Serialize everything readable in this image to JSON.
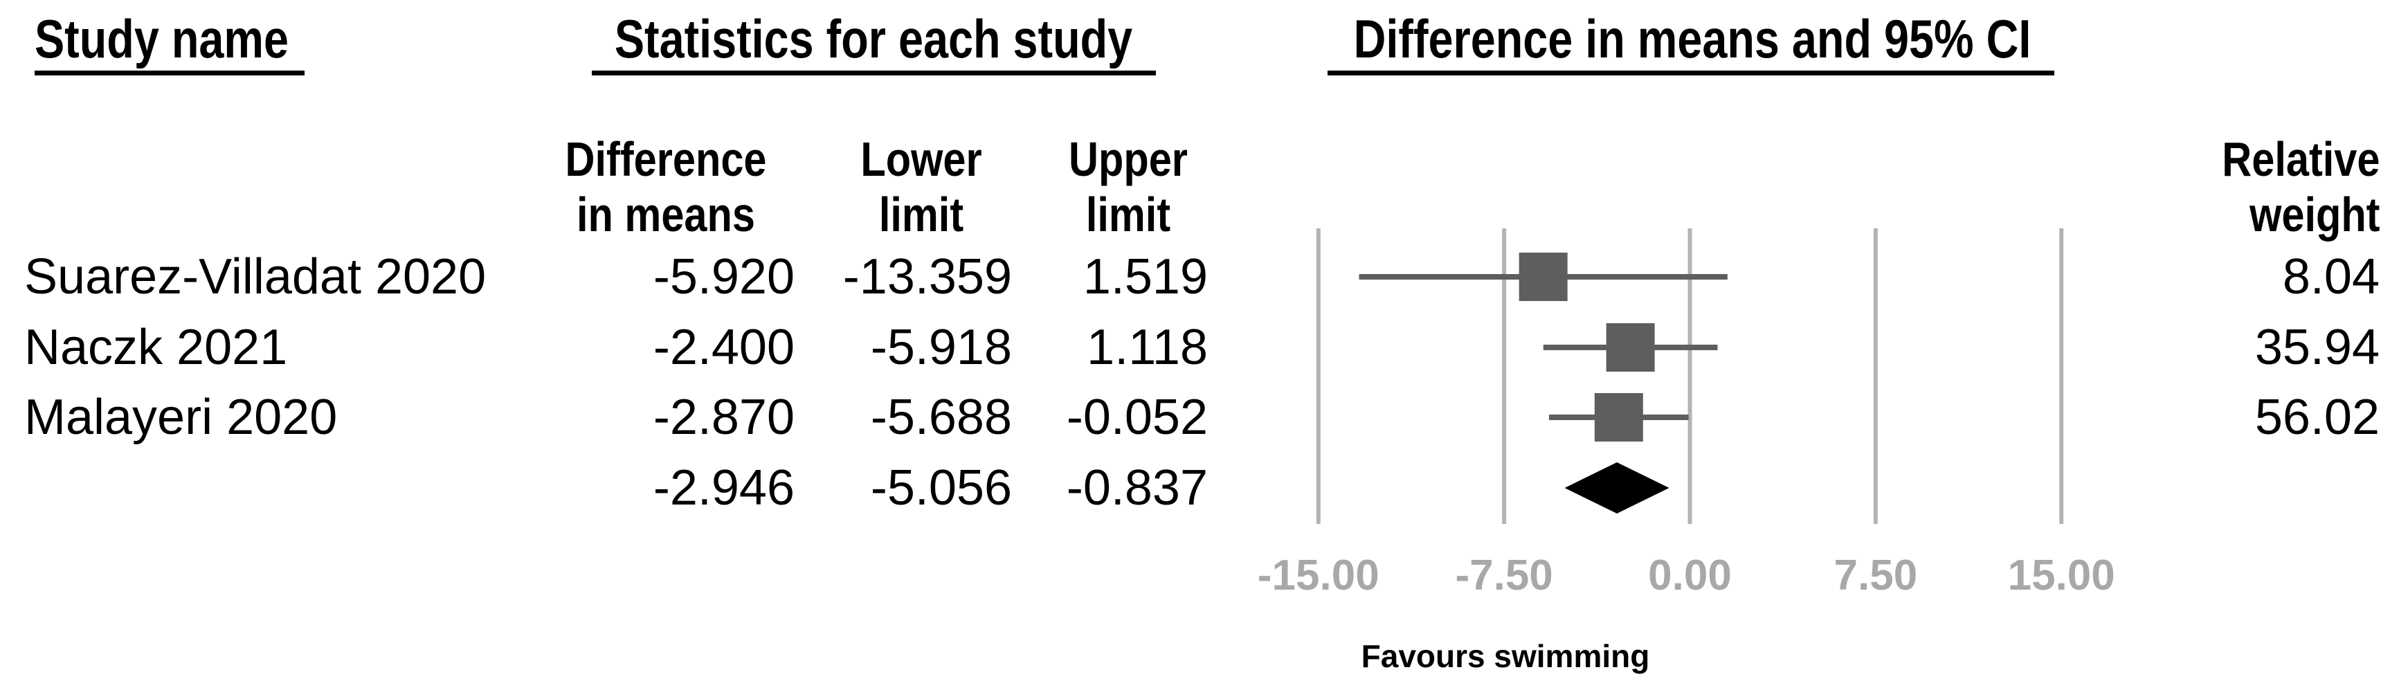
{
  "headers": {
    "study_name": "Study name",
    "statistics": "Statistics for each study",
    "plot": "Difference in means and 95% CI",
    "col_difference_line1": "Difference",
    "col_difference_line2": "in means",
    "col_lower_line1": "Lower",
    "col_lower_line2": "limit",
    "col_upper_line1": "Upper",
    "col_upper_line2": "limit",
    "col_weight_line1": "Relative",
    "col_weight_line2": "weight"
  },
  "rows": [
    {
      "study": "Suarez-Villadat 2020",
      "diff": "-5.920",
      "lower": "-13.359",
      "upper": "1.519",
      "weight": "8.04",
      "type": "study"
    },
    {
      "study": "Naczk 2021",
      "diff": "-2.400",
      "lower": "-5.918",
      "upper": "1.118",
      "weight": "35.94",
      "type": "study"
    },
    {
      "study": "Malayeri 2020",
      "diff": "-2.870",
      "lower": "-5.688",
      "upper": "-0.052",
      "weight": "56.02",
      "type": "study"
    },
    {
      "study": "",
      "diff": "-2.946",
      "lower": "-5.056",
      "upper": "-0.837",
      "weight": "",
      "type": "summary"
    }
  ],
  "axis": {
    "ticks": [
      "-15.00",
      "-7.50",
      "0.00",
      "7.50",
      "15.00"
    ],
    "favours_left": "Favours swimming"
  },
  "chart_data": {
    "type": "forest",
    "title": "Difference in means and 95% CI",
    "x_axis": {
      "min": -15,
      "max": 15,
      "tick_step": 7.5,
      "tick_values": [
        -15,
        -7.5,
        0,
        7.5,
        15
      ],
      "tick_labels": [
        "-15.00",
        "-7.50",
        "0.00",
        "7.50",
        "15.00"
      ]
    },
    "studies": [
      {
        "name": "Suarez-Villadat 2020",
        "mean": -5.92,
        "lower": -13.359,
        "upper": 1.519,
        "weight": 8.04
      },
      {
        "name": "Naczk 2021",
        "mean": -2.4,
        "lower": -5.918,
        "upper": 1.118,
        "weight": 35.94
      },
      {
        "name": "Malayeri 2020",
        "mean": -2.87,
        "lower": -5.688,
        "upper": -0.052,
        "weight": 56.02
      }
    ],
    "summary": {
      "mean": -2.946,
      "lower": -5.056,
      "upper": -0.837
    },
    "favours_left_label": "Favours swimming",
    "marker_style": "equal-size-squares",
    "grid": "vertical-gridlines-at-ticks",
    "legend": "none",
    "colors": {
      "square": "#5e5e5e",
      "ci_line": "#5e5e5e",
      "diamond": "#000000",
      "gridline": "#b3b3b3",
      "tick_label": "#a8a8a8",
      "text": "#000000"
    }
  }
}
